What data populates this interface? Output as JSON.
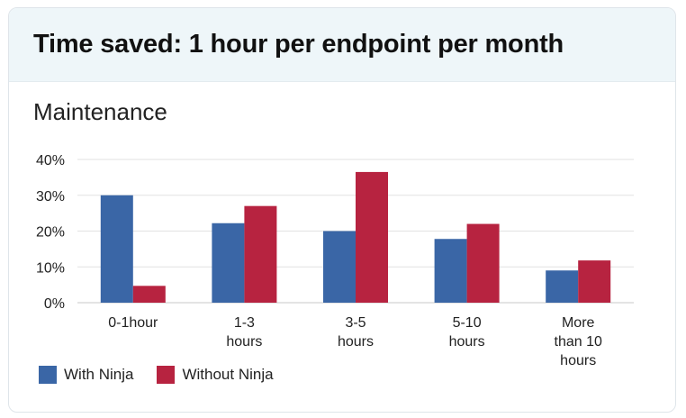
{
  "header": {
    "title": "Time saved: 1 hour per endpoint per month"
  },
  "chart_data": {
    "type": "bar",
    "title": "Maintenance",
    "categories": [
      [
        "0-1hour"
      ],
      [
        "1-3",
        "hours"
      ],
      [
        "3-5",
        "hours"
      ],
      [
        "5-10",
        "hours"
      ],
      [
        "More",
        "than 10",
        "hours"
      ]
    ],
    "series": [
      {
        "name": "With Ninja",
        "color": "#3a66a6",
        "values": [
          30,
          22.2,
          20,
          17.8,
          9
        ]
      },
      {
        "name": "Without Ninja",
        "color": "#b72340",
        "values": [
          4.7,
          27,
          36.5,
          22,
          11.8
        ]
      }
    ],
    "yticks": [
      "0%",
      "10%",
      "20%",
      "30%",
      "40%"
    ],
    "ylim": [
      0,
      40
    ],
    "grid": true,
    "legend": "bottom-left"
  }
}
